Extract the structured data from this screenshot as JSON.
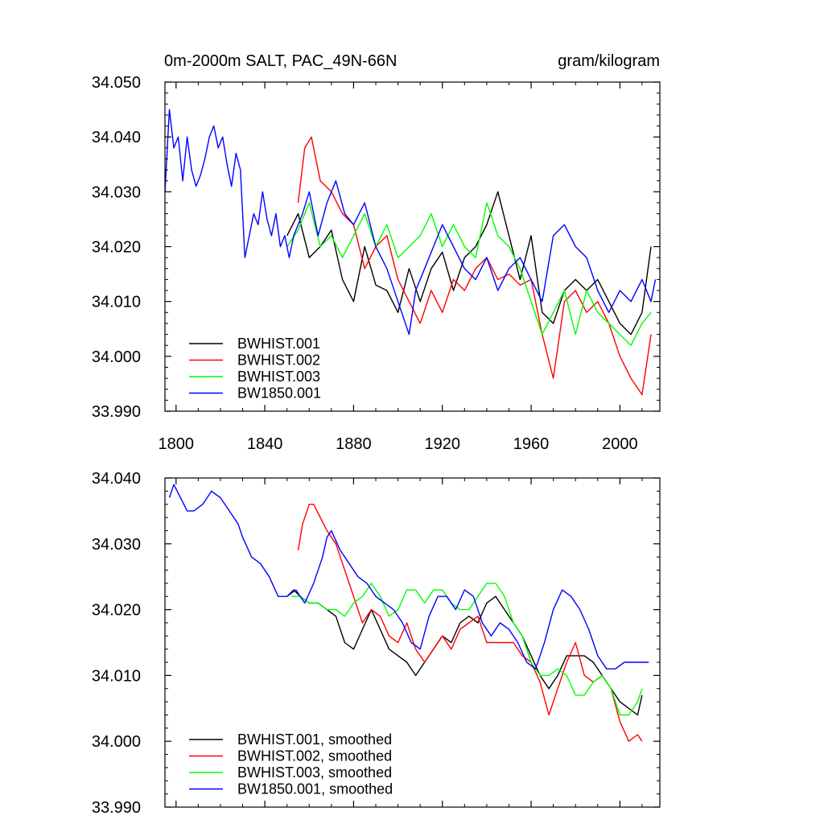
{
  "header": {
    "title_left": "0m-2000m SALT, PAC_49N-66N",
    "title_right": "gram/kilogram"
  },
  "colors": {
    "BWHIST.001": "#000000",
    "BWHIST.002": "#ff0000",
    "BWHIST.003": "#00ff00",
    "BW1850.001": "#0000ff"
  },
  "chart_data": [
    {
      "type": "line",
      "title": "0m-2000m SALT, PAC_49N-66N",
      "units": "gram/kilogram",
      "xlim": [
        1795,
        2018
      ],
      "ylim": [
        33.99,
        34.05
      ],
      "xticks": [
        1800,
        1840,
        1880,
        1920,
        1960,
        2000
      ],
      "xtick_labels": [
        "1800",
        "1840",
        "1880",
        "1920",
        "1960",
        "2000"
      ],
      "yticks": [
        33.99,
        34.0,
        34.01,
        34.02,
        34.03,
        34.04,
        34.05
      ],
      "ytick_labels": [
        "33.990",
        "34.000",
        "34.010",
        "34.020",
        "34.030",
        "34.040",
        "34.050"
      ],
      "legend": [
        "BWHIST.001",
        "BWHIST.002",
        "BWHIST.003",
        "BW1850.001"
      ],
      "legend_position": "bottom-left",
      "series": [
        {
          "name": "BWHIST.001",
          "color": "#000000",
          "x": [
            1850,
            1855,
            1860,
            1865,
            1870,
            1875,
            1880,
            1885,
            1890,
            1895,
            1900,
            1905,
            1910,
            1915,
            1920,
            1925,
            1930,
            1935,
            1940,
            1945,
            1950,
            1955,
            1960,
            1965,
            1970,
            1975,
            1980,
            1985,
            1990,
            1995,
            2000,
            2005,
            2010,
            2014
          ],
          "y": [
            34.022,
            34.026,
            34.018,
            34.02,
            34.023,
            34.014,
            34.01,
            34.02,
            34.013,
            34.012,
            34.008,
            34.016,
            34.01,
            34.016,
            34.019,
            34.012,
            34.018,
            34.02,
            34.024,
            34.03,
            34.022,
            34.014,
            34.022,
            34.008,
            34.006,
            34.012,
            34.014,
            34.012,
            34.014,
            34.01,
            34.006,
            34.004,
            34.008,
            34.02
          ]
        },
        {
          "name": "BWHIST.002",
          "color": "#ff0000",
          "x": [
            1855,
            1858,
            1861,
            1865,
            1870,
            1875,
            1880,
            1885,
            1890,
            1895,
            1900,
            1905,
            1910,
            1915,
            1920,
            1925,
            1930,
            1935,
            1940,
            1945,
            1950,
            1955,
            1960,
            1965,
            1970,
            1975,
            1980,
            1985,
            1990,
            1995,
            2000,
            2005,
            2010,
            2014
          ],
          "y": [
            34.028,
            34.038,
            34.04,
            34.032,
            34.03,
            34.026,
            34.024,
            34.016,
            34.02,
            34.022,
            34.014,
            34.01,
            34.006,
            34.012,
            34.008,
            34.014,
            34.012,
            34.016,
            34.018,
            34.014,
            34.015,
            34.013,
            34.014,
            34.004,
            33.996,
            34.01,
            34.012,
            34.008,
            34.01,
            34.006,
            34.0,
            33.996,
            33.993,
            34.004
          ]
        },
        {
          "name": "BWHIST.003",
          "color": "#00ff00",
          "x": [
            1850,
            1855,
            1860,
            1865,
            1870,
            1875,
            1880,
            1885,
            1890,
            1895,
            1900,
            1905,
            1910,
            1915,
            1920,
            1925,
            1930,
            1935,
            1940,
            1945,
            1950,
            1955,
            1960,
            1965,
            1970,
            1975,
            1980,
            1985,
            1990,
            1995,
            2000,
            2005,
            2010,
            2014
          ],
          "y": [
            34.02,
            34.023,
            34.028,
            34.02,
            34.022,
            34.018,
            34.022,
            34.026,
            34.02,
            34.024,
            34.018,
            34.02,
            34.022,
            34.026,
            34.02,
            34.024,
            34.02,
            34.018,
            34.028,
            34.022,
            34.02,
            34.016,
            34.01,
            34.004,
            34.008,
            34.012,
            34.004,
            34.012,
            34.008,
            34.006,
            34.004,
            34.002,
            34.006,
            34.008
          ]
        },
        {
          "name": "BW1850.001",
          "color": "#0000ff",
          "x": [
            1795,
            1797,
            1799,
            1801,
            1803,
            1805,
            1807,
            1809,
            1811,
            1813,
            1815,
            1817,
            1819,
            1821,
            1823,
            1825,
            1827,
            1829,
            1831,
            1833,
            1835,
            1837,
            1839,
            1841,
            1843,
            1845,
            1847,
            1849,
            1851,
            1853,
            1855,
            1857,
            1860,
            1864,
            1868,
            1872,
            1876,
            1880,
            1885,
            1890,
            1895,
            1900,
            1905,
            1908,
            1912,
            1916,
            1920,
            1925,
            1930,
            1935,
            1940,
            1945,
            1950,
            1955,
            1960,
            1965,
            1970,
            1975,
            1980,
            1985,
            1990,
            1995,
            2000,
            2005,
            2010,
            2014,
            2016
          ],
          "y": [
            34.03,
            34.045,
            34.038,
            34.04,
            34.032,
            34.04,
            34.034,
            34.031,
            34.033,
            34.036,
            34.04,
            34.042,
            34.038,
            34.04,
            34.035,
            34.031,
            34.037,
            34.034,
            34.018,
            34.022,
            34.026,
            34.024,
            34.03,
            34.025,
            34.022,
            34.026,
            34.02,
            34.022,
            34.018,
            34.022,
            34.024,
            34.026,
            34.03,
            34.022,
            34.028,
            34.032,
            34.026,
            34.024,
            34.028,
            34.02,
            34.016,
            34.01,
            34.004,
            34.012,
            34.016,
            34.02,
            34.024,
            34.02,
            34.016,
            34.014,
            34.018,
            34.012,
            34.016,
            34.018,
            34.014,
            34.01,
            34.022,
            34.024,
            34.02,
            34.018,
            34.012,
            34.008,
            34.012,
            34.01,
            34.014,
            34.01,
            34.014
          ]
        }
      ]
    },
    {
      "type": "line",
      "xlim": [
        1795,
        2018
      ],
      "ylim": [
        33.99,
        34.04
      ],
      "xticks": [
        1800,
        1840,
        1880,
        1920,
        1960,
        2000
      ],
      "yticks": [
        33.99,
        34.0,
        34.01,
        34.02,
        34.03,
        34.04
      ],
      "ytick_labels": [
        "33.990",
        "34.000",
        "34.010",
        "34.020",
        "34.030",
        "34.040"
      ],
      "legend": [
        "BWHIST.001, smoothed",
        "BWHIST.002, smoothed",
        "BWHIST.003, smoothed",
        "BW1850.001, smoothed"
      ],
      "legend_position": "bottom-left",
      "series": [
        {
          "name": "BWHIST.001, smoothed",
          "color": "#000000",
          "x": [
            1850,
            1853,
            1856,
            1860,
            1864,
            1868,
            1872,
            1876,
            1880,
            1884,
            1888,
            1892,
            1896,
            1900,
            1904,
            1908,
            1912,
            1916,
            1920,
            1924,
            1928,
            1932,
            1936,
            1940,
            1944,
            1948,
            1952,
            1956,
            1960,
            1964,
            1968,
            1972,
            1976,
            1980,
            1984,
            1988,
            1992,
            1996,
            2000,
            2004,
            2008,
            2010
          ],
          "y": [
            34.022,
            34.023,
            34.022,
            34.021,
            34.021,
            34.02,
            34.019,
            34.015,
            34.014,
            34.017,
            34.02,
            34.017,
            34.014,
            34.013,
            34.012,
            34.01,
            34.012,
            34.014,
            34.016,
            34.015,
            34.018,
            34.019,
            34.018,
            34.021,
            34.022,
            34.02,
            34.018,
            34.016,
            34.013,
            34.01,
            34.008,
            34.01,
            34.013,
            34.013,
            34.013,
            34.012,
            34.01,
            34.008,
            34.006,
            34.005,
            34.004,
            34.007
          ]
        },
        {
          "name": "BWHIST.002, smoothed",
          "color": "#ff0000",
          "x": [
            1855,
            1857,
            1860,
            1862,
            1865,
            1868,
            1872,
            1876,
            1880,
            1884,
            1888,
            1892,
            1896,
            1900,
            1904,
            1908,
            1912,
            1916,
            1920,
            1924,
            1928,
            1932,
            1936,
            1940,
            1944,
            1948,
            1952,
            1956,
            1960,
            1964,
            1968,
            1972,
            1976,
            1980,
            1984,
            1988,
            1992,
            1996,
            2000,
            2004,
            2008,
            2010
          ],
          "y": [
            34.029,
            34.033,
            34.036,
            34.036,
            34.034,
            34.032,
            34.03,
            34.026,
            34.022,
            34.018,
            34.02,
            34.019,
            34.016,
            34.015,
            34.018,
            34.014,
            34.012,
            34.014,
            34.016,
            34.014,
            34.017,
            34.018,
            34.019,
            34.015,
            34.015,
            34.015,
            34.015,
            34.013,
            34.012,
            34.009,
            34.004,
            34.008,
            34.012,
            34.015,
            34.01,
            34.009,
            34.01,
            34.008,
            34.003,
            34.0,
            34.001,
            34.0
          ]
        },
        {
          "name": "BWHIST.003, smoothed",
          "color": "#00ff00",
          "x": [
            1852,
            1856,
            1860,
            1864,
            1868,
            1872,
            1876,
            1880,
            1884,
            1888,
            1892,
            1896,
            1900,
            1904,
            1908,
            1912,
            1916,
            1920,
            1924,
            1928,
            1932,
            1936,
            1940,
            1944,
            1948,
            1952,
            1956,
            1960,
            1964,
            1968,
            1972,
            1976,
            1980,
            1984,
            1988,
            1992,
            1996,
            2000,
            2004,
            2008,
            2010
          ],
          "y": [
            34.022,
            34.022,
            34.021,
            34.021,
            34.02,
            34.02,
            34.019,
            34.021,
            34.022,
            34.024,
            34.022,
            34.019,
            34.02,
            34.023,
            34.023,
            34.021,
            34.023,
            34.023,
            34.021,
            34.02,
            34.02,
            34.022,
            34.024,
            34.024,
            34.022,
            34.018,
            34.016,
            34.012,
            34.01,
            34.01,
            34.011,
            34.01,
            34.007,
            34.007,
            34.009,
            34.01,
            34.008,
            34.004,
            34.004,
            34.006,
            34.008
          ]
        },
        {
          "name": "BW1850.001, smoothed",
          "color": "#0000ff",
          "x": [
            1797,
            1799,
            1802,
            1805,
            1808,
            1812,
            1816,
            1820,
            1824,
            1828,
            1830,
            1834,
            1838,
            1842,
            1846,
            1850,
            1854,
            1858,
            1862,
            1866,
            1868,
            1870,
            1874,
            1878,
            1882,
            1886,
            1890,
            1894,
            1898,
            1902,
            1906,
            1910,
            1914,
            1918,
            1922,
            1926,
            1930,
            1934,
            1938,
            1942,
            1946,
            1950,
            1954,
            1958,
            1962,
            1966,
            1970,
            1974,
            1978,
            1982,
            1986,
            1990,
            1994,
            1998,
            2002,
            2006,
            2010,
            2013
          ],
          "y": [
            34.037,
            34.039,
            34.037,
            34.035,
            34.035,
            34.036,
            34.038,
            34.037,
            34.035,
            34.033,
            34.031,
            34.028,
            34.027,
            34.025,
            34.022,
            34.022,
            34.023,
            34.021,
            34.024,
            34.028,
            34.031,
            34.032,
            34.029,
            34.027,
            34.025,
            34.024,
            34.022,
            34.021,
            34.02,
            34.018,
            34.015,
            34.014,
            34.019,
            34.022,
            34.022,
            34.02,
            34.023,
            34.022,
            34.018,
            34.016,
            34.018,
            34.017,
            34.015,
            34.012,
            34.011,
            34.015,
            34.02,
            34.023,
            34.022,
            34.02,
            34.017,
            34.013,
            34.011,
            34.011,
            34.012,
            34.012,
            34.012,
            34.012
          ]
        }
      ]
    }
  ]
}
